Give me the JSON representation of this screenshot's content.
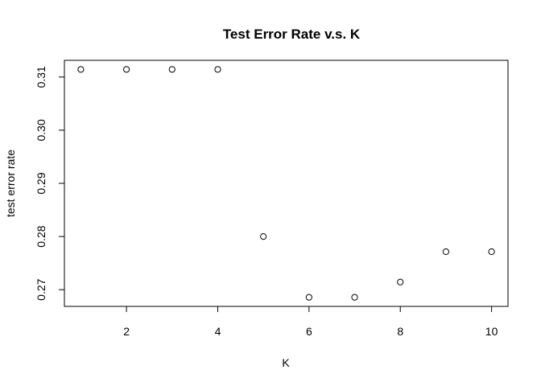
{
  "chart_data": {
    "type": "scatter",
    "title": "Test Error Rate v.s. K",
    "xlabel": "K",
    "ylabel": "test error rate",
    "xlim": [
      0.64,
      10.36
    ],
    "ylim": [
      0.26685714,
      0.31314286
    ],
    "xticks": [
      2,
      4,
      6,
      8,
      10
    ],
    "yticks": [
      0.27,
      0.28,
      0.29,
      0.3,
      0.31
    ],
    "xtick_labels": [
      "2",
      "4",
      "6",
      "8",
      "10"
    ],
    "ytick_labels": [
      "0.27",
      "0.28",
      "0.29",
      "0.30",
      "0.31"
    ],
    "grid": false,
    "marker": "open-circle",
    "point_color": "#000000",
    "x": [
      1,
      2,
      3,
      4,
      5,
      6,
      7,
      8,
      9,
      10
    ],
    "y": [
      0.3114286,
      0.3114286,
      0.3114286,
      0.3114286,
      0.28,
      0.2685714,
      0.2685714,
      0.2714286,
      0.2771429,
      0.2771429
    ]
  }
}
